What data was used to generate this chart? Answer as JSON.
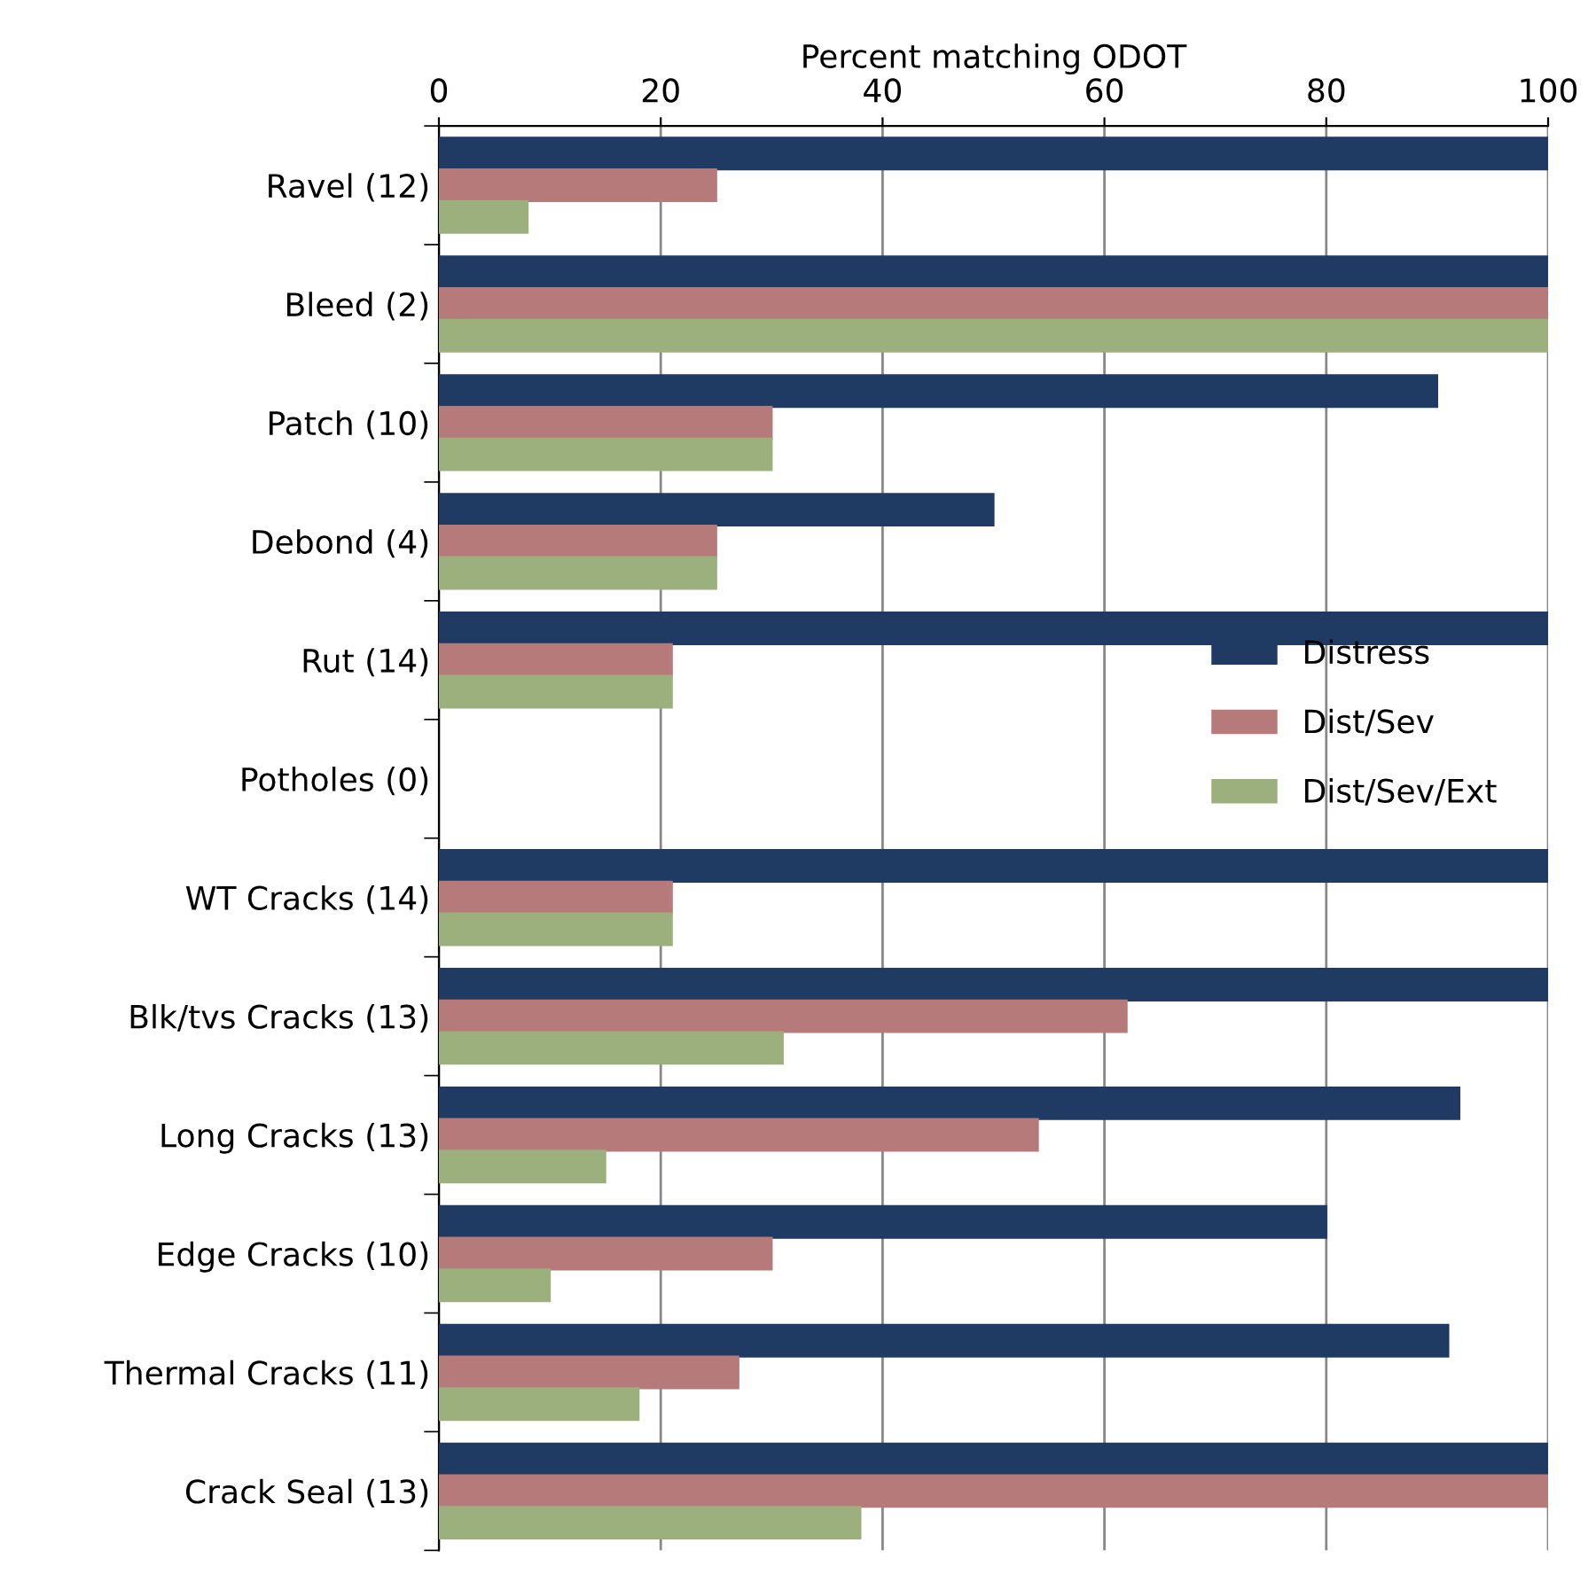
{
  "chart_data": {
    "type": "bar",
    "orientation": "horizontal",
    "xlabel": "Percent matching ODOT",
    "categories": [
      "Ravel (12)",
      "Bleed (2)",
      "Patch (10)",
      "Debond (4)",
      "Rut (14)",
      "Potholes (0)",
      "WT Cracks (14)",
      "Blk/tvs Cracks (13)",
      "Long Cracks (13)",
      "Edge Cracks (10)",
      "Thermal Cracks (11)",
      "Crack Seal (13)"
    ],
    "series": [
      {
        "name": "Distress",
        "color": "#1f3b63",
        "values": [
          100,
          100,
          90,
          50,
          100,
          null,
          100,
          100,
          92,
          80,
          91,
          100
        ]
      },
      {
        "name": "Dist/Sev",
        "color": "#b77a7a",
        "values": [
          25,
          100,
          30,
          25,
          21,
          null,
          21,
          62,
          54,
          30,
          27,
          100
        ]
      },
      {
        "name": "Dist/Sev/Ext",
        "color": "#9bb07c",
        "values": [
          8,
          100,
          30,
          25,
          21,
          null,
          21,
          31,
          15,
          10,
          18,
          38
        ]
      }
    ],
    "xlim": [
      0,
      100
    ],
    "xticks": [
      0,
      20,
      40,
      60,
      80,
      100
    ],
    "grid": "x",
    "legend": "right"
  }
}
